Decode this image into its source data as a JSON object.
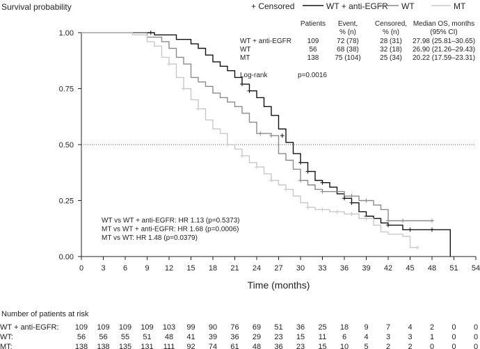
{
  "chart_data": {
    "type": "line",
    "ylabel": "Survival probability",
    "xlabel": "Time (months)",
    "xlim": [
      0,
      54
    ],
    "ylim": [
      0,
      1
    ],
    "x_ticks": [
      0,
      3,
      6,
      9,
      12,
      15,
      18,
      21,
      24,
      27,
      30,
      33,
      36,
      39,
      42,
      45,
      48,
      51,
      54
    ],
    "y_ticks": [
      "0.00",
      "0.25",
      "0.50",
      "0.75",
      "1.00"
    ],
    "reference_line": 0.5,
    "legend": {
      "censored_label": "+ Censored",
      "series_labels": [
        "WT + anti-EGFR",
        "WT",
        "MT"
      ]
    },
    "series": [
      {
        "name": "WT + anti-EGFR",
        "color": "#111111",
        "points": [
          [
            0,
            1
          ],
          [
            9,
            1
          ],
          [
            10,
            0.99
          ],
          [
            12,
            0.99
          ],
          [
            13,
            0.97
          ],
          [
            14,
            0.97
          ],
          [
            15,
            0.95
          ],
          [
            16,
            0.93
          ],
          [
            17,
            0.9
          ],
          [
            18,
            0.87
          ],
          [
            19,
            0.85
          ],
          [
            20,
            0.83
          ],
          [
            21,
            0.8
          ],
          [
            22,
            0.77
          ],
          [
            23,
            0.74
          ],
          [
            24,
            0.71
          ],
          [
            25,
            0.67
          ],
          [
            26,
            0.63
          ],
          [
            27,
            0.57
          ],
          [
            28,
            0.51
          ],
          [
            29,
            0.46
          ],
          [
            30,
            0.42
          ],
          [
            31,
            0.38
          ],
          [
            32,
            0.34
          ],
          [
            33,
            0.33
          ],
          [
            34,
            0.31
          ],
          [
            35,
            0.28
          ],
          [
            36,
            0.26
          ],
          [
            37,
            0.24
          ],
          [
            38,
            0.2
          ],
          [
            39,
            0.18
          ],
          [
            40,
            0.17
          ],
          [
            41,
            0.15
          ],
          [
            42,
            0.14
          ],
          [
            44,
            0.12
          ],
          [
            46,
            0.12
          ],
          [
            48,
            0.12
          ],
          [
            50,
            0.12
          ],
          [
            50.5,
            0
          ]
        ],
        "censored": [
          [
            9.5,
            1
          ],
          [
            22,
            0.77
          ],
          [
            23,
            0.74
          ],
          [
            27.5,
            0.54
          ],
          [
            30,
            0.42
          ],
          [
            31,
            0.38
          ],
          [
            33,
            0.33
          ],
          [
            36,
            0.26
          ],
          [
            37,
            0.24
          ],
          [
            39,
            0.18
          ],
          [
            42,
            0.14
          ],
          [
            45,
            0.12
          ],
          [
            48,
            0.12
          ]
        ]
      },
      {
        "name": "WT",
        "color": "#8a8a8a",
        "points": [
          [
            0,
            1
          ],
          [
            8,
            1
          ],
          [
            9,
            0.98
          ],
          [
            11,
            0.96
          ],
          [
            12,
            0.93
          ],
          [
            13,
            0.89
          ],
          [
            14,
            0.86
          ],
          [
            15,
            0.8
          ],
          [
            16,
            0.78
          ],
          [
            17,
            0.76
          ],
          [
            18,
            0.73
          ],
          [
            19,
            0.71
          ],
          [
            20,
            0.69
          ],
          [
            21,
            0.67
          ],
          [
            22,
            0.64
          ],
          [
            23,
            0.6
          ],
          [
            24,
            0.55
          ],
          [
            25,
            0.55
          ],
          [
            26,
            0.54
          ],
          [
            27,
            0.46
          ],
          [
            28,
            0.43
          ],
          [
            29,
            0.39
          ],
          [
            30,
            0.34
          ],
          [
            31,
            0.32
          ],
          [
            32,
            0.3
          ],
          [
            33,
            0.29
          ],
          [
            36,
            0.27
          ],
          [
            38,
            0.25
          ],
          [
            40,
            0.23
          ],
          [
            41,
            0.21
          ],
          [
            42,
            0.16
          ],
          [
            44,
            0.16
          ],
          [
            48,
            0.16
          ]
        ],
        "censored": [
          [
            24.5,
            0.55
          ],
          [
            26,
            0.54
          ],
          [
            30,
            0.34
          ],
          [
            33,
            0.29
          ],
          [
            37,
            0.27
          ],
          [
            39,
            0.25
          ],
          [
            42,
            0.16
          ],
          [
            44,
            0.16
          ],
          [
            48,
            0.16
          ]
        ]
      },
      {
        "name": "MT",
        "color": "#c8c8c8",
        "points": [
          [
            0,
            1
          ],
          [
            5,
            1
          ],
          [
            7,
            0.99
          ],
          [
            9,
            0.96
          ],
          [
            10,
            0.94
          ],
          [
            11,
            0.89
          ],
          [
            12,
            0.86
          ],
          [
            13,
            0.8
          ],
          [
            14,
            0.75
          ],
          [
            15,
            0.7
          ],
          [
            16,
            0.66
          ],
          [
            17,
            0.61
          ],
          [
            18,
            0.57
          ],
          [
            19,
            0.55
          ],
          [
            20,
            0.5
          ],
          [
            21,
            0.48
          ],
          [
            22,
            0.45
          ],
          [
            23,
            0.42
          ],
          [
            24,
            0.4
          ],
          [
            25,
            0.37
          ],
          [
            26,
            0.34
          ],
          [
            27,
            0.32
          ],
          [
            28,
            0.3
          ],
          [
            29,
            0.27
          ],
          [
            30,
            0.24
          ],
          [
            31,
            0.22
          ],
          [
            32,
            0.21
          ],
          [
            33,
            0.21
          ],
          [
            34,
            0.2
          ],
          [
            36,
            0.19
          ],
          [
            38,
            0.17
          ],
          [
            40,
            0.14
          ],
          [
            41,
            0.11
          ],
          [
            42,
            0.1
          ],
          [
            44,
            0.09
          ],
          [
            45,
            0.04
          ],
          [
            46,
            0.04
          ]
        ],
        "censored": [
          [
            12,
            0.86
          ],
          [
            14,
            0.75
          ],
          [
            16,
            0.66
          ],
          [
            20,
            0.5
          ],
          [
            22,
            0.45
          ],
          [
            24,
            0.4
          ],
          [
            26,
            0.34
          ],
          [
            28,
            0.3
          ],
          [
            31,
            0.22
          ],
          [
            33,
            0.21
          ],
          [
            35,
            0.2
          ],
          [
            37,
            0.19
          ],
          [
            39,
            0.17
          ],
          [
            46,
            0.04
          ]
        ]
      }
    ],
    "stats_table": {
      "headers": [
        [
          "",
          ""
        ],
        [
          "Patients",
          ""
        ],
        [
          "Event,",
          "% (n)"
        ],
        [
          "Censored,",
          "% (n)"
        ],
        [
          "Median OS, months",
          "(95% CI)"
        ]
      ],
      "rows": [
        [
          "WT + anti-EGFR",
          "109",
          "72 (78)",
          "28 (31)",
          "27.98 (25.81–30.65)"
        ],
        [
          "WT",
          "56",
          "68 (38)",
          "32 (18)",
          "26.90 (21.26–29.43)"
        ],
        [
          "MT",
          "138",
          "75 (104)",
          "25 (34)",
          "20.22 (17.59–23.31)"
        ]
      ],
      "logrank_label": "Log-rank",
      "logrank_value": "p=0.0016"
    },
    "hazard_ratios": [
      "WT vs WT + anti-EGFR: HR 1.13 (p=0.5373)",
      "MT vs WT + anti-EGFR: HR 1.68 (p=0.0006)",
      "MT vs WT: HR 1.48 (p=0.0379)"
    ],
    "risk_table": {
      "title": "Number of patients at risk",
      "rows": [
        {
          "label": "WT + anti-EGFR:",
          "values": [
            109,
            109,
            109,
            109,
            103,
            99,
            90,
            76,
            69,
            51,
            36,
            25,
            18,
            9,
            7,
            4,
            2,
            0,
            0
          ]
        },
        {
          "label": "WT:",
          "values": [
            56,
            56,
            55,
            51,
            48,
            41,
            39,
            36,
            29,
            23,
            15,
            11,
            6,
            4,
            3,
            3,
            1,
            0,
            0
          ]
        },
        {
          "label": "MT:",
          "values": [
            138,
            138,
            135,
            131,
            111,
            92,
            74,
            61,
            48,
            36,
            23,
            15,
            10,
            5,
            2,
            2,
            0,
            0,
            0
          ]
        }
      ]
    }
  }
}
